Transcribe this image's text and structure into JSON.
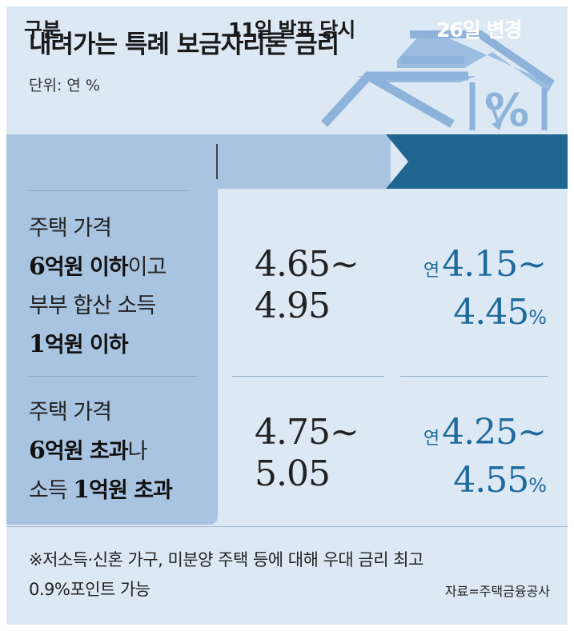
{
  "title": "내려가는 특례 보금자리론 금리",
  "unit": "단위: 연 %",
  "headers": {
    "category": "구분",
    "announced": "11일 발표 당시",
    "changed": "26일 변경"
  },
  "rows": [
    {
      "condition": {
        "line1": "주택 가격",
        "line2_num": "6",
        "line2_bold": "억원 이하",
        "line2_rest": "이고",
        "line3": "부부 합산 소득",
        "line4_num": "1",
        "line4_bold": "억원 이하"
      },
      "announced": {
        "line1": "4.65~",
        "line2": "4.95"
      },
      "changed": {
        "prefix": "연",
        "line1": "4.15~",
        "line2": "4.45",
        "unit": "%"
      }
    },
    {
      "condition": {
        "line1": "주택 가격",
        "line2_num": "6",
        "line2_bold": "억원 초과",
        "line2_rest": "나",
        "line3_pre": "소득 ",
        "line3_num": "1",
        "line3_bold": "억원 초과"
      },
      "announced": {
        "line1": "4.75~",
        "line2": "5.05"
      },
      "changed": {
        "prefix": "연",
        "line1": "4.25~",
        "line2": "4.55",
        "unit": "%"
      }
    }
  ],
  "note": {
    "line1": "※저소득·신혼 가구, 미분양 주택 등에 대해 우대 금리 최고",
    "line2": "0.9%포인트 가능"
  },
  "source": "자료=주택금융공사",
  "colors": {
    "background": "#dce9f5",
    "panel": "#a9c4e1",
    "accent": "#1f6691",
    "new_value": "#1e6a9c"
  },
  "icons": [
    "house-percent-illustration"
  ]
}
